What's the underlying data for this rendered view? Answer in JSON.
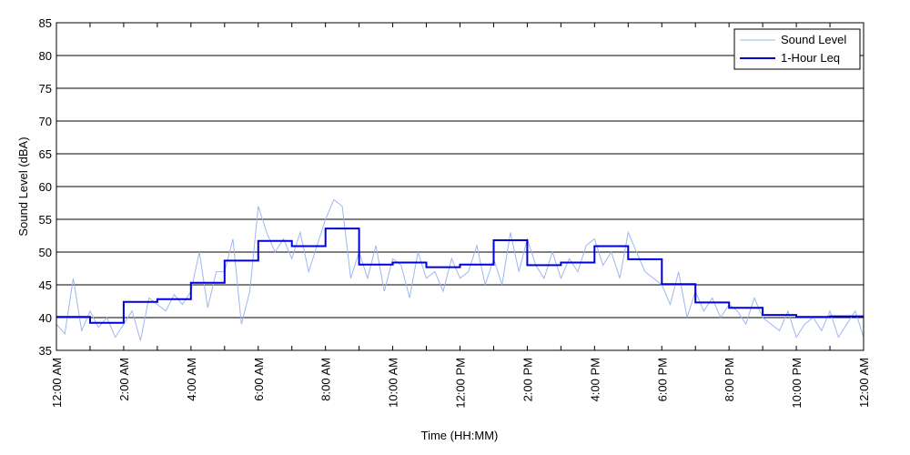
{
  "chart_data": {
    "type": "line",
    "xlabel": "Time (HH:MM)",
    "ylabel": "Sound Level (dBA)",
    "ylim": [
      35,
      85
    ],
    "xlim_hours": [
      0,
      24
    ],
    "y_ticks": [
      35,
      40,
      45,
      50,
      55,
      60,
      65,
      70,
      75,
      80,
      85
    ],
    "x_ticks": [
      {
        "hour": 0,
        "label": "12:00 AM"
      },
      {
        "hour": 2,
        "label": "2:00 AM"
      },
      {
        "hour": 4,
        "label": "4:00 AM"
      },
      {
        "hour": 6,
        "label": "6:00 AM"
      },
      {
        "hour": 8,
        "label": "8:00 AM"
      },
      {
        "hour": 10,
        "label": "10:00 AM"
      },
      {
        "hour": 12,
        "label": "12:00 PM"
      },
      {
        "hour": 14,
        "label": "2:00 PM"
      },
      {
        "hour": 16,
        "label": "4:00 PM"
      },
      {
        "hour": 18,
        "label": "6:00 PM"
      },
      {
        "hour": 20,
        "label": "8:00 PM"
      },
      {
        "hour": 22,
        "label": "10:00 PM"
      },
      {
        "hour": 24,
        "label": "12:00 AM"
      }
    ],
    "grid": "horizontal",
    "legend_position": "top-right",
    "series": [
      {
        "name": "Sound Level",
        "color": "#9db7f0",
        "x_hours": [
          0,
          0.25,
          0.5,
          0.75,
          1,
          1.25,
          1.5,
          1.75,
          2,
          2.25,
          2.5,
          2.75,
          3,
          3.25,
          3.5,
          3.75,
          4,
          4.25,
          4.5,
          4.75,
          5,
          5.25,
          5.5,
          5.75,
          6,
          6.25,
          6.5,
          6.75,
          7,
          7.25,
          7.5,
          7.75,
          8,
          8.25,
          8.5,
          8.75,
          9,
          9.25,
          9.5,
          9.75,
          10,
          10.25,
          10.5,
          10.75,
          11,
          11.25,
          11.5,
          11.75,
          12,
          12.25,
          12.5,
          12.75,
          13,
          13.25,
          13.5,
          13.75,
          14,
          14.25,
          14.5,
          14.75,
          15,
          15.25,
          15.5,
          15.75,
          16,
          16.25,
          16.5,
          16.75,
          17,
          17.25,
          17.5,
          17.75,
          18,
          18.25,
          18.5,
          18.75,
          19,
          19.25,
          19.5,
          19.75,
          20,
          20.25,
          20.5,
          20.75,
          21,
          21.25,
          21.5,
          21.75,
          22,
          22.25,
          22.5,
          22.75,
          23,
          23.25,
          23.5,
          23.75,
          24
        ],
        "values": [
          39,
          37.5,
          46,
          38,
          41,
          38.5,
          40,
          37,
          39,
          41,
          36.5,
          43,
          42,
          41,
          43.5,
          42,
          44,
          50,
          41.5,
          47,
          47,
          52,
          39,
          44,
          57,
          53,
          50,
          52,
          49,
          53,
          47,
          51,
          55,
          58,
          57,
          46,
          50,
          46,
          51,
          44,
          49,
          48,
          43,
          50,
          46,
          47,
          44,
          49,
          46,
          47,
          51,
          45,
          49,
          45,
          53,
          47,
          52,
          48,
          46,
          50,
          46,
          49,
          47,
          51,
          52,
          48,
          50,
          46,
          53,
          50,
          47,
          46,
          45,
          42,
          47,
          40,
          44,
          41,
          43,
          40,
          42,
          41,
          39,
          43,
          40,
          39,
          38,
          41,
          37,
          39,
          40,
          38,
          41,
          37,
          39,
          41,
          37
        ]
      },
      {
        "name": "1-Hour Leq",
        "color": "#0000d8",
        "step_hours": [
          0,
          1,
          2,
          3,
          4,
          5,
          6,
          7,
          8,
          9,
          10,
          11,
          12,
          13,
          14,
          15,
          16,
          17,
          18,
          19,
          20,
          21,
          22,
          23
        ],
        "values": [
          40.1,
          39.2,
          42.4,
          42.8,
          45.3,
          48.7,
          51.7,
          50.9,
          53.6,
          48.1,
          48.4,
          47.7,
          48.1,
          51.8,
          48.0,
          48.4,
          50.9,
          48.9,
          45.1,
          42.3,
          41.5,
          40.4,
          40.1,
          40.2
        ]
      }
    ]
  }
}
